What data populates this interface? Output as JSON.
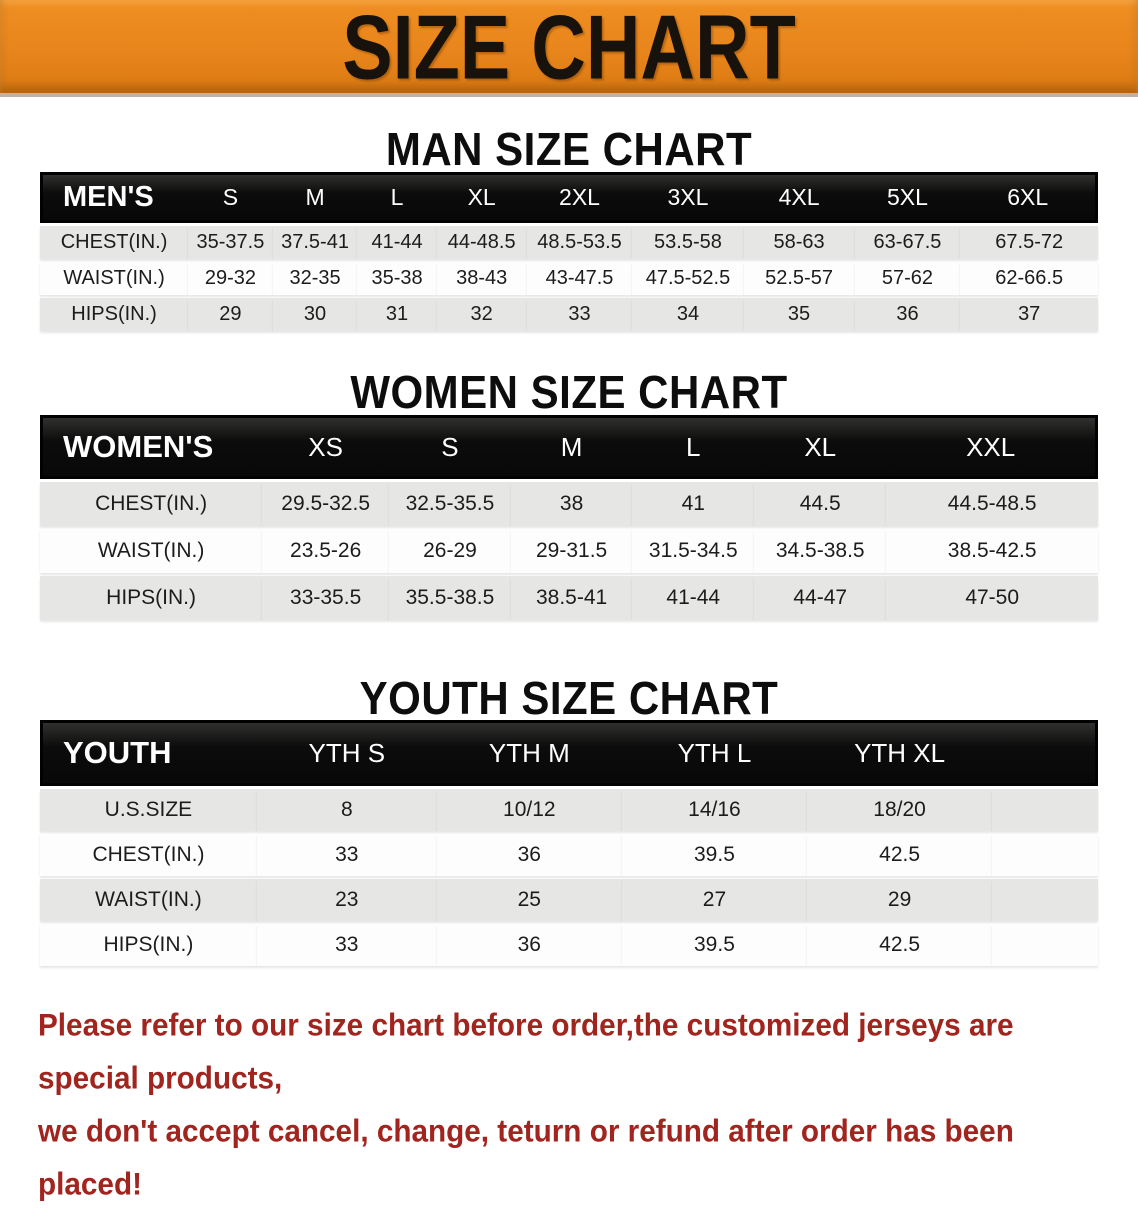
{
  "banner": {
    "title": "SIZE CHART",
    "bg_color": "#e8851c",
    "text_color": "#17120c"
  },
  "sections": [
    {
      "title": "MAN SIZE CHART",
      "header_label": "MEN'S",
      "columns": [
        "S",
        "M",
        "L",
        "XL",
        "2XL",
        "3XL",
        "4XL",
        "5XL",
        "6XL"
      ],
      "rows": [
        {
          "label": "CHEST(IN.)",
          "values": [
            "35-37.5",
            "37.5-41",
            "41-44",
            "44-48.5",
            "48.5-53.5",
            "53.5-58",
            "58-63",
            "63-67.5",
            "67.5-72"
          ]
        },
        {
          "label": "WAIST(IN.)",
          "values": [
            "29-32",
            "32-35",
            "35-38",
            "38-43",
            "43-47.5",
            "47.5-52.5",
            "52.5-57",
            "57-62",
            "62-66.5"
          ]
        },
        {
          "label": "HIPS(IN.)",
          "values": [
            "29",
            "30",
            "31",
            "32",
            "33",
            "34",
            "35",
            "36",
            "37"
          ]
        }
      ]
    },
    {
      "title": "WOMEN SIZE CHART",
      "header_label": "WOMEN'S",
      "columns": [
        "XS",
        "S",
        "M",
        "L",
        "XL",
        "XXL"
      ],
      "rows": [
        {
          "label": "CHEST(IN.)",
          "values": [
            "29.5-32.5",
            "32.5-35.5",
            "38",
            "41",
            "44.5",
            "44.5-48.5"
          ]
        },
        {
          "label": "WAIST(IN.)",
          "values": [
            "23.5-26",
            "26-29",
            "29-31.5",
            "31.5-34.5",
            "34.5-38.5",
            "38.5-42.5"
          ]
        },
        {
          "label": "HIPS(IN.)",
          "values": [
            "33-35.5",
            "35.5-38.5",
            "38.5-41",
            "41-44",
            "44-47",
            "47-50"
          ]
        }
      ]
    },
    {
      "title": "YOUTH SIZE CHART",
      "header_label": "YOUTH",
      "columns": [
        "YTH S",
        "YTH M",
        "YTH L",
        "YTH XL"
      ],
      "rows": [
        {
          "label": "U.S.SIZE",
          "values": [
            "8",
            "10/12",
            "14/16",
            "18/20"
          ]
        },
        {
          "label": "CHEST(IN.)",
          "values": [
            "33",
            "36",
            "39.5",
            "42.5"
          ]
        },
        {
          "label": "WAIST(IN.)",
          "values": [
            "23",
            "25",
            "27",
            "29"
          ]
        },
        {
          "label": "HIPS(IN.)",
          "values": [
            "33",
            "36",
            "39.5",
            "42.5"
          ]
        }
      ]
    }
  ],
  "footer": {
    "line1": "Please refer to our size chart before order,the customized jerseys are special products,",
    "line2": "we don't accept cancel, change, teturn or refund after order has been placed!",
    "text_color": "#a1251e"
  }
}
